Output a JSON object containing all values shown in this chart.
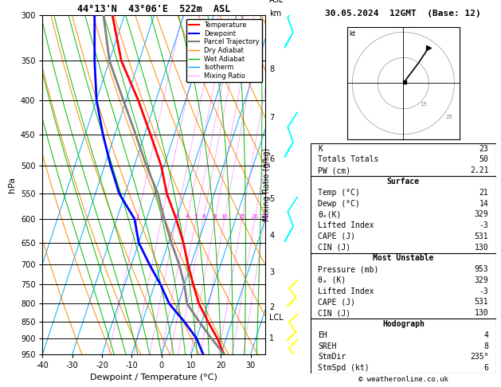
{
  "title_left": "44°13'N  43°06'E  522m  ASL",
  "title_right": "30.05.2024  12GMT  (Base: 12)",
  "xlabel": "Dewpoint / Temperature (°C)",
  "ylabel_left": "hPa",
  "stats": {
    "K": 23,
    "Totals Totals": 50,
    "PW (cm)": "2.21",
    "Surface Temp (C)": 21,
    "Surface Dewp (C)": 14,
    "theta_e K": 329,
    "Lifted Index": -3,
    "CAPE J": 531,
    "CIN J": 130,
    "MU Pressure mb": 953,
    "MU theta_e K": 329,
    "MU Lifted Index": -3,
    "MU CAPE J": 531,
    "MU CIN J": 130,
    "EH": 4,
    "SREH": 8,
    "StmDir": 235,
    "StmSpd kt": 6
  },
  "temperature_profile": {
    "pressure": [
      950,
      900,
      850,
      800,
      750,
      700,
      650,
      600,
      550,
      500,
      450,
      400,
      350,
      300
    ],
    "temp": [
      21,
      17,
      12,
      7,
      3,
      -1,
      -5,
      -10,
      -16,
      -21,
      -28,
      -36,
      -46,
      -54
    ]
  },
  "dewpoint_profile": {
    "pressure": [
      950,
      900,
      850,
      800,
      750,
      700,
      650,
      600,
      550,
      500,
      450,
      400,
      350,
      300
    ],
    "dewp": [
      14,
      10,
      4,
      -3,
      -8,
      -14,
      -20,
      -24,
      -32,
      -38,
      -44,
      -50,
      -55,
      -60
    ]
  },
  "parcel_profile": {
    "pressure": [
      950,
      900,
      850,
      800,
      750,
      700,
      650,
      600,
      550,
      500,
      450,
      400,
      350,
      300
    ],
    "temp": [
      21,
      15,
      9,
      3,
      0,
      -4,
      -9,
      -14,
      -19,
      -26,
      -33,
      -41,
      -50,
      -57
    ]
  },
  "lcl_pressure": 840,
  "pmin": 300,
  "pmax": 950,
  "temp_min": -40,
  "temp_max": 35,
  "skew_factor": 37.5,
  "pressure_levels": [
    300,
    350,
    400,
    450,
    500,
    550,
    600,
    650,
    700,
    750,
    800,
    850,
    900,
    950
  ],
  "isotherm_temps": [
    -50,
    -40,
    -30,
    -20,
    -10,
    0,
    10,
    20,
    30,
    40
  ],
  "dry_adiabat_thetas": [
    250,
    260,
    270,
    280,
    290,
    300,
    310,
    320,
    330,
    340,
    350,
    360,
    370,
    380,
    390,
    400,
    410,
    420
  ],
  "wet_adiabat_starts": [
    -16,
    -12,
    -8,
    -4,
    0,
    4,
    8,
    12,
    16,
    20,
    24,
    28,
    32,
    36
  ],
  "mr_values": [
    1,
    2,
    3,
    4,
    5,
    6,
    8,
    10,
    15,
    20,
    25
  ],
  "km_asl_ticks": [
    [
      900,
      "1"
    ],
    [
      810,
      "2"
    ],
    [
      720,
      "3"
    ],
    [
      635,
      "4"
    ],
    [
      560,
      "5"
    ],
    [
      490,
      "6"
    ],
    [
      425,
      "7"
    ],
    [
      360,
      "8"
    ]
  ],
  "wind_symbols": [
    {
      "pressure": 310,
      "color": "cyan",
      "type": "up_arrow"
    },
    {
      "pressure": 450,
      "color": "cyan",
      "type": "zig"
    },
    {
      "pressure": 600,
      "color": "cyan",
      "type": "small_zig"
    },
    {
      "pressure": 780,
      "color": "yellow",
      "type": "zig_down"
    },
    {
      "pressure": 870,
      "color": "yellow",
      "type": "zig_down2"
    },
    {
      "pressure": 950,
      "color": "yellow",
      "type": "zig_down3"
    }
  ]
}
